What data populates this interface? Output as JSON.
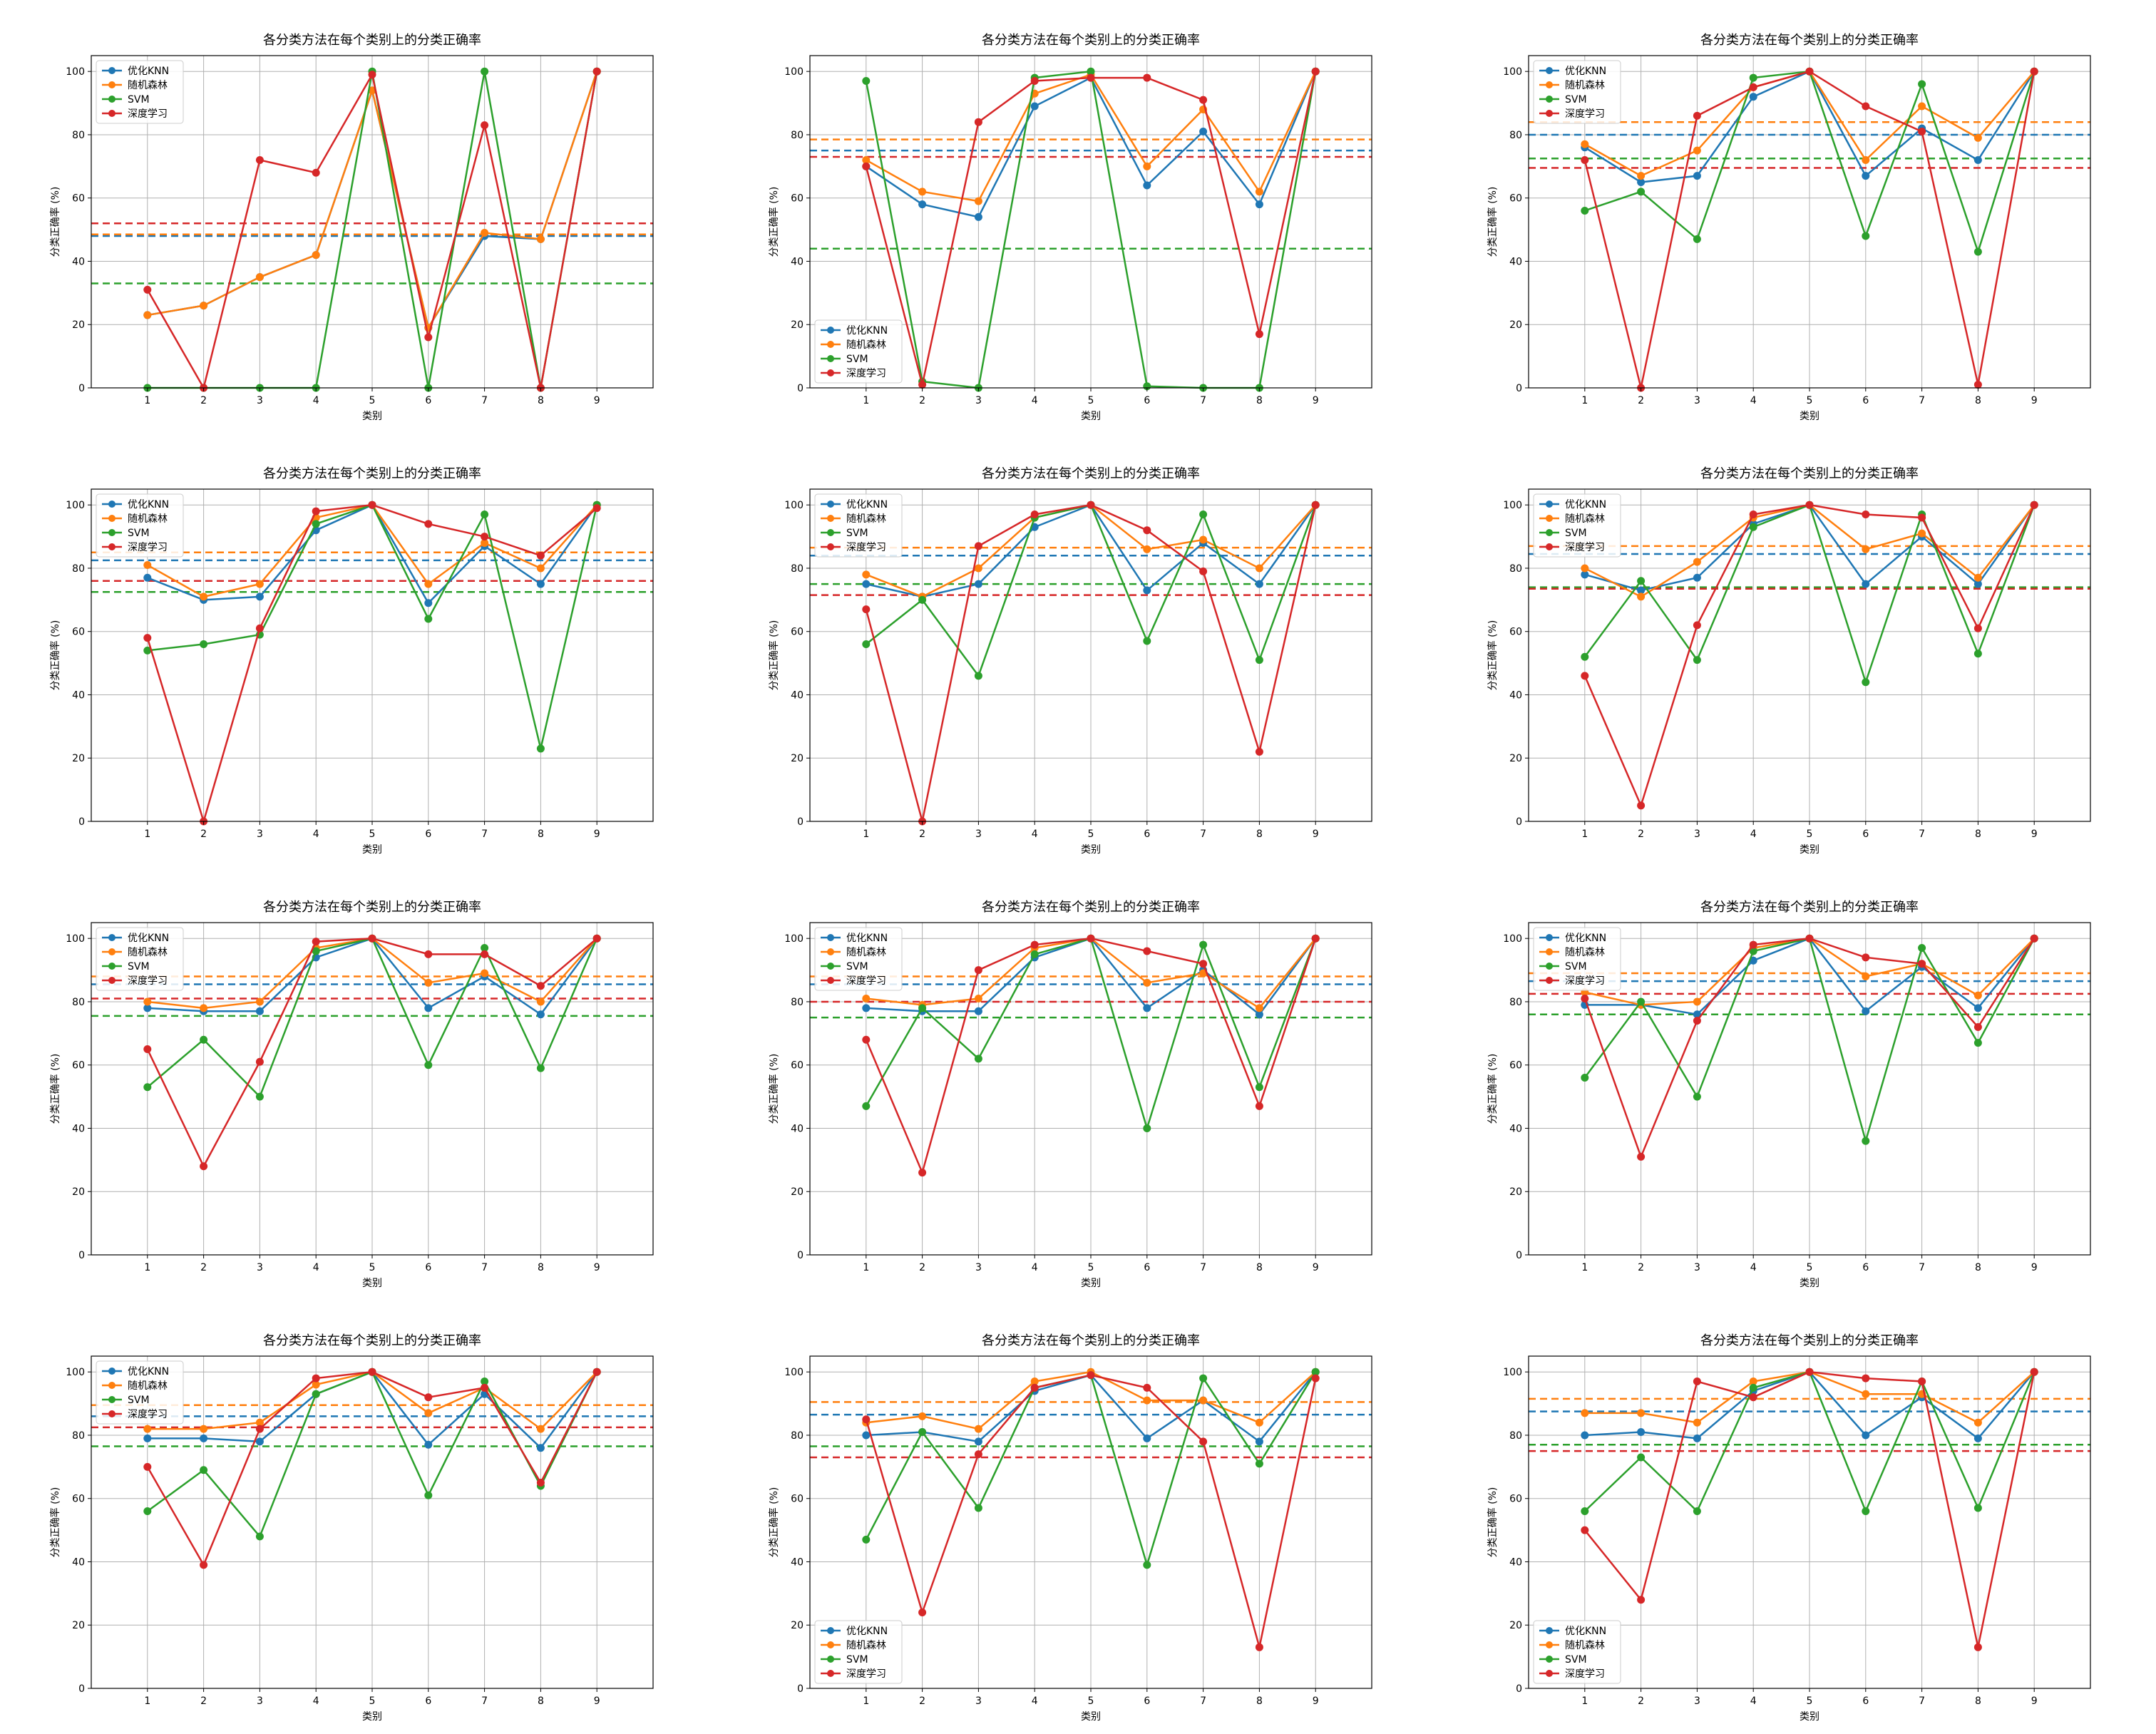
{
  "colors": {
    "knn": "#1f77b4",
    "rf": "#ff7f0e",
    "svm": "#2ca02c",
    "dl": "#d62728"
  },
  "chart_data": [
    {
      "type": "line",
      "title": "各分类方法在每个类别上的分类正确率",
      "xlabel": "类别",
      "ylabel": "分类正确率 (%)",
      "categories": [
        "1",
        "2",
        "3",
        "4",
        "5",
        "6",
        "7",
        "8",
        "9"
      ],
      "ylim": [
        0,
        105
      ],
      "yticks": [
        0,
        20,
        40,
        60,
        80,
        100
      ],
      "grid": true,
      "legend_loc": "upper-left",
      "series": [
        {
          "name": "优化KNN",
          "color": "#1f77b4",
          "values": [
            23,
            26,
            35,
            42,
            94,
            19,
            48,
            47,
            100
          ],
          "mean": 48
        },
        {
          "name": "随机森林",
          "color": "#ff7f0e",
          "values": [
            23,
            26,
            35,
            42,
            94,
            19,
            49,
            47,
            100
          ],
          "mean": 48.5
        },
        {
          "name": "SVM",
          "color": "#2ca02c",
          "values": [
            0,
            0,
            0,
            0,
            100,
            0,
            100,
            0,
            100
          ],
          "mean": 33
        },
        {
          "name": "深度学习",
          "color": "#d62728",
          "values": [
            31,
            0,
            72,
            68,
            99,
            16,
            83,
            0,
            100
          ],
          "mean": 52
        }
      ]
    },
    {
      "type": "line",
      "title": "各分类方法在每个类别上的分类正确率",
      "xlabel": "类别",
      "ylabel": "分类正确率 (%)",
      "categories": [
        "1",
        "2",
        "3",
        "4",
        "5",
        "6",
        "7",
        "8",
        "9"
      ],
      "ylim": [
        0,
        105
      ],
      "yticks": [
        0,
        20,
        40,
        60,
        80,
        100
      ],
      "grid": true,
      "legend_loc": "lower-left",
      "series": [
        {
          "name": "优化KNN",
          "color": "#1f77b4",
          "values": [
            70,
            58,
            54,
            89,
            98,
            64,
            81,
            58,
            100
          ],
          "mean": 75
        },
        {
          "name": "随机森林",
          "color": "#ff7f0e",
          "values": [
            72,
            62,
            59,
            93,
            99,
            70,
            88,
            62,
            100
          ],
          "mean": 78.5
        },
        {
          "name": "SVM",
          "color": "#2ca02c",
          "values": [
            97,
            2,
            0,
            98,
            100,
            0.5,
            0,
            0,
            100
          ],
          "mean": 44
        },
        {
          "name": "深度学习",
          "color": "#d62728",
          "values": [
            70,
            1,
            84,
            97,
            98,
            98,
            91,
            17,
            100
          ],
          "mean": 73
        }
      ]
    },
    {
      "type": "line",
      "title": "各分类方法在每个类别上的分类正确率",
      "xlabel": "类别",
      "ylabel": "分类正确率 (%)",
      "categories": [
        "1",
        "2",
        "3",
        "4",
        "5",
        "6",
        "7",
        "8",
        "9"
      ],
      "ylim": [
        0,
        105
      ],
      "yticks": [
        0,
        20,
        40,
        60,
        80,
        100
      ],
      "grid": true,
      "legend_loc": "upper-left",
      "series": [
        {
          "name": "优化KNN",
          "color": "#1f77b4",
          "values": [
            76,
            65,
            67,
            92,
            100,
            67,
            82,
            72,
            100
          ],
          "mean": 80
        },
        {
          "name": "随机森林",
          "color": "#ff7f0e",
          "values": [
            77,
            67,
            75,
            95,
            100,
            72,
            89,
            79,
            100
          ],
          "mean": 84
        },
        {
          "name": "SVM",
          "color": "#2ca02c",
          "values": [
            56,
            62,
            47,
            98,
            100,
            48,
            96,
            43,
            100
          ],
          "mean": 72.5
        },
        {
          "name": "深度学习",
          "color": "#d62728",
          "values": [
            72,
            0,
            86,
            95,
            100,
            89,
            81,
            1,
            100
          ],
          "mean": 69.5
        }
      ]
    },
    {
      "type": "line",
      "title": "各分类方法在每个类别上的分类正确率",
      "xlabel": "类别",
      "ylabel": "分类正确率 (%)",
      "categories": [
        "1",
        "2",
        "3",
        "4",
        "5",
        "6",
        "7",
        "8",
        "9"
      ],
      "ylim": [
        0,
        105
      ],
      "yticks": [
        0,
        20,
        40,
        60,
        80,
        100
      ],
      "grid": true,
      "legend_loc": "upper-left",
      "series": [
        {
          "name": "优化KNN",
          "color": "#1f77b4",
          "values": [
            77,
            70,
            71,
            92,
            100,
            69,
            87,
            75,
            100
          ],
          "mean": 82.5
        },
        {
          "name": "随机森林",
          "color": "#ff7f0e",
          "values": [
            81,
            71,
            75,
            96,
            100,
            75,
            88,
            80,
            100
          ],
          "mean": 85
        },
        {
          "name": "SVM",
          "color": "#2ca02c",
          "values": [
            54,
            56,
            59,
            94,
            100,
            64,
            97,
            23,
            100
          ],
          "mean": 72.5
        },
        {
          "name": "深度学习",
          "color": "#d62728",
          "values": [
            58,
            0,
            61,
            98,
            100,
            94,
            90,
            84,
            99
          ],
          "mean": 76
        }
      ]
    },
    {
      "type": "line",
      "title": "各分类方法在每个类别上的分类正确率",
      "xlabel": "类别",
      "ylabel": "分类正确率 (%)",
      "categories": [
        "1",
        "2",
        "3",
        "4",
        "5",
        "6",
        "7",
        "8",
        "9"
      ],
      "ylim": [
        0,
        105
      ],
      "yticks": [
        0,
        20,
        40,
        60,
        80,
        100
      ],
      "grid": true,
      "legend_loc": "upper-left",
      "series": [
        {
          "name": "优化KNN",
          "color": "#1f77b4",
          "values": [
            75,
            71,
            75,
            93,
            100,
            73,
            88,
            75,
            100
          ],
          "mean": 84
        },
        {
          "name": "随机森林",
          "color": "#ff7f0e",
          "values": [
            78,
            71,
            80,
            96,
            100,
            86,
            89,
            80,
            100
          ],
          "mean": 86.5
        },
        {
          "name": "SVM",
          "color": "#2ca02c",
          "values": [
            56,
            70,
            46,
            96,
            100,
            57,
            97,
            51,
            100
          ],
          "mean": 75
        },
        {
          "name": "深度学习",
          "color": "#d62728",
          "values": [
            67,
            0,
            87,
            97,
            100,
            92,
            79,
            22,
            100
          ],
          "mean": 71.5
        }
      ]
    },
    {
      "type": "line",
      "title": "各分类方法在每个类别上的分类正确率",
      "xlabel": "类别",
      "ylabel": "分类正确率 (%)",
      "categories": [
        "1",
        "2",
        "3",
        "4",
        "5",
        "6",
        "7",
        "8",
        "9"
      ],
      "ylim": [
        0,
        105
      ],
      "yticks": [
        0,
        20,
        40,
        60,
        80,
        100
      ],
      "grid": true,
      "legend_loc": "upper-left",
      "series": [
        {
          "name": "优化KNN",
          "color": "#1f77b4",
          "values": [
            78,
            73,
            77,
            94,
            100,
            75,
            90,
            75,
            100
          ],
          "mean": 84.5
        },
        {
          "name": "随机森林",
          "color": "#ff7f0e",
          "values": [
            80,
            71,
            82,
            96,
            100,
            86,
            91,
            77,
            100
          ],
          "mean": 87
        },
        {
          "name": "SVM",
          "color": "#2ca02c",
          "values": [
            52,
            76,
            51,
            93,
            100,
            44,
            97,
            53,
            100
          ],
          "mean": 74
        },
        {
          "name": "深度学习",
          "color": "#d62728",
          "values": [
            46,
            5,
            62,
            97,
            100,
            97,
            96,
            61,
            100
          ],
          "mean": 73.5
        }
      ]
    },
    {
      "type": "line",
      "title": "各分类方法在每个类别上的分类正确率",
      "xlabel": "类别",
      "ylabel": "分类正确率 (%)",
      "categories": [
        "1",
        "2",
        "3",
        "4",
        "5",
        "6",
        "7",
        "8",
        "9"
      ],
      "ylim": [
        0,
        105
      ],
      "yticks": [
        0,
        20,
        40,
        60,
        80,
        100
      ],
      "grid": true,
      "legend_loc": "upper-left",
      "series": [
        {
          "name": "优化KNN",
          "color": "#1f77b4",
          "values": [
            78,
            77,
            77,
            94,
            100,
            78,
            88,
            76,
            100
          ],
          "mean": 85.5
        },
        {
          "name": "随机森林",
          "color": "#ff7f0e",
          "values": [
            80,
            78,
            80,
            97,
            100,
            86,
            89,
            80,
            100
          ],
          "mean": 88
        },
        {
          "name": "SVM",
          "color": "#2ca02c",
          "values": [
            53,
            68,
            50,
            96,
            100,
            60,
            97,
            59,
            100
          ],
          "mean": 75.5
        },
        {
          "name": "深度学习",
          "color": "#d62728",
          "values": [
            65,
            28,
            61,
            99,
            100,
            95,
            95,
            85,
            100
          ],
          "mean": 81
        }
      ]
    },
    {
      "type": "line",
      "title": "各分类方法在每个类别上的分类正确率",
      "xlabel": "类别",
      "ylabel": "分类正确率 (%)",
      "categories": [
        "1",
        "2",
        "3",
        "4",
        "5",
        "6",
        "7",
        "8",
        "9"
      ],
      "ylim": [
        0,
        105
      ],
      "yticks": [
        0,
        20,
        40,
        60,
        80,
        100
      ],
      "grid": true,
      "legend_loc": "upper-left",
      "series": [
        {
          "name": "优化KNN",
          "color": "#1f77b4",
          "values": [
            78,
            77,
            77,
            94,
            100,
            78,
            90,
            76,
            100
          ],
          "mean": 85.5
        },
        {
          "name": "随机森林",
          "color": "#ff7f0e",
          "values": [
            81,
            79,
            81,
            97,
            100,
            86,
            89,
            78,
            100
          ],
          "mean": 88
        },
        {
          "name": "SVM",
          "color": "#2ca02c",
          "values": [
            47,
            78,
            62,
            95,
            100,
            40,
            98,
            53,
            100
          ],
          "mean": 75
        },
        {
          "name": "深度学习",
          "color": "#d62728",
          "values": [
            68,
            26,
            90,
            98,
            100,
            96,
            92,
            47,
            100
          ],
          "mean": 80
        }
      ]
    },
    {
      "type": "line",
      "title": "各分类方法在每个类别上的分类正确率",
      "xlabel": "类别",
      "ylabel": "分类正确率 (%)",
      "categories": [
        "1",
        "2",
        "3",
        "4",
        "5",
        "6",
        "7",
        "8",
        "9"
      ],
      "ylim": [
        0,
        105
      ],
      "yticks": [
        0,
        20,
        40,
        60,
        80,
        100
      ],
      "grid": true,
      "legend_loc": "upper-left",
      "series": [
        {
          "name": "优化KNN",
          "color": "#1f77b4",
          "values": [
            79,
            79,
            76,
            93,
            100,
            77,
            91,
            78,
            100
          ],
          "mean": 86.5
        },
        {
          "name": "随机森林",
          "color": "#ff7f0e",
          "values": [
            83,
            79,
            80,
            97,
            100,
            88,
            92,
            82,
            100
          ],
          "mean": 89
        },
        {
          "name": "SVM",
          "color": "#2ca02c",
          "values": [
            56,
            80,
            50,
            96,
            100,
            36,
            97,
            67,
            100
          ],
          "mean": 76
        },
        {
          "name": "深度学习",
          "color": "#d62728",
          "values": [
            81,
            31,
            74,
            98,
            100,
            94,
            92,
            72,
            100
          ],
          "mean": 82.5
        }
      ]
    },
    {
      "type": "line",
      "title": "各分类方法在每个类别上的分类正确率",
      "xlabel": "类别",
      "ylabel": "分类正确率 (%)",
      "categories": [
        "1",
        "2",
        "3",
        "4",
        "5",
        "6",
        "7",
        "8",
        "9"
      ],
      "ylim": [
        0,
        105
      ],
      "yticks": [
        0,
        20,
        40,
        60,
        80,
        100
      ],
      "grid": true,
      "legend_loc": "upper-left",
      "series": [
        {
          "name": "优化KNN",
          "color": "#1f77b4",
          "values": [
            79,
            79,
            78,
            93,
            100,
            77,
            93,
            76,
            100
          ],
          "mean": 86
        },
        {
          "name": "随机森林",
          "color": "#ff7f0e",
          "values": [
            82,
            82,
            84,
            96,
            100,
            87,
            95,
            82,
            100
          ],
          "mean": 89.5
        },
        {
          "name": "SVM",
          "color": "#2ca02c",
          "values": [
            56,
            69,
            48,
            93,
            100,
            61,
            97,
            64,
            100
          ],
          "mean": 76.5
        },
        {
          "name": "深度学习",
          "color": "#d62728",
          "values": [
            70,
            39,
            82,
            98,
            100,
            92,
            95,
            65,
            100
          ],
          "mean": 82.5
        }
      ]
    },
    {
      "type": "line",
      "title": "各分类方法在每个类别上的分类正确率",
      "xlabel": "类别",
      "ylabel": "分类正确率 (%)",
      "categories": [
        "1",
        "2",
        "3",
        "4",
        "5",
        "6",
        "7",
        "8",
        "9"
      ],
      "ylim": [
        0,
        105
      ],
      "yticks": [
        0,
        20,
        40,
        60,
        80,
        100
      ],
      "grid": true,
      "legend_loc": "lower-left",
      "series": [
        {
          "name": "优化KNN",
          "color": "#1f77b4",
          "values": [
            80,
            81,
            78,
            94,
            99,
            79,
            91,
            78,
            100
          ],
          "mean": 86.5
        },
        {
          "name": "随机森林",
          "color": "#ff7f0e",
          "values": [
            84,
            86,
            82,
            97,
            100,
            91,
            91,
            84,
            100
          ],
          "mean": 90.5
        },
        {
          "name": "SVM",
          "color": "#2ca02c",
          "values": [
            47,
            81,
            57,
            95,
            99,
            39,
            98,
            71,
            100
          ],
          "mean": 76.5
        },
        {
          "name": "深度学习",
          "color": "#d62728",
          "values": [
            85,
            24,
            74,
            95,
            99,
            95,
            78,
            13,
            98
          ],
          "mean": 73
        }
      ]
    },
    {
      "type": "line",
      "title": "各分类方法在每个类别上的分类正确率",
      "xlabel": "类别",
      "ylabel": "分类正确率 (%)",
      "categories": [
        "1",
        "2",
        "3",
        "4",
        "5",
        "6",
        "7",
        "8",
        "9"
      ],
      "ylim": [
        0,
        105
      ],
      "yticks": [
        0,
        20,
        40,
        60,
        80,
        100
      ],
      "grid": true,
      "legend_loc": "lower-left",
      "series": [
        {
          "name": "优化KNN",
          "color": "#1f77b4",
          "values": [
            80,
            81,
            79,
            94,
            100,
            80,
            92,
            79,
            100
          ],
          "mean": 87.5
        },
        {
          "name": "随机森林",
          "color": "#ff7f0e",
          "values": [
            87,
            87,
            84,
            97,
            100,
            93,
            93,
            84,
            100
          ],
          "mean": 91.5
        },
        {
          "name": "SVM",
          "color": "#2ca02c",
          "values": [
            56,
            73,
            56,
            95,
            100,
            56,
            97,
            57,
            100
          ],
          "mean": 77
        },
        {
          "name": "深度学习",
          "color": "#d62728",
          "values": [
            50,
            28,
            97,
            92,
            100,
            98,
            97,
            13,
            100
          ],
          "mean": 75
        }
      ]
    }
  ]
}
